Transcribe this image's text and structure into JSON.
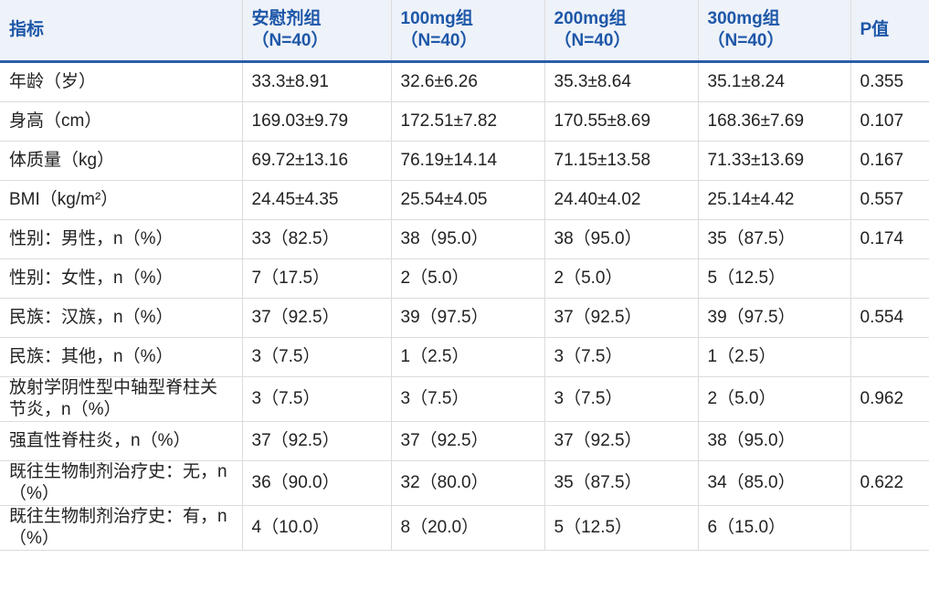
{
  "table": {
    "header": [
      "指标",
      [
        "安慰剂组",
        "（N=40）"
      ],
      [
        "100mg组",
        "（N=40）"
      ],
      [
        "200mg组",
        "（N=40）"
      ],
      [
        "300mg组",
        "（N=40）"
      ],
      "P值"
    ],
    "rows": [
      [
        "年龄（岁）",
        "33.3±8.91",
        "32.6±6.26",
        "35.3±8.64",
        "35.1±8.24",
        "0.355"
      ],
      [
        "身高（cm）",
        "169.03±9.79",
        "172.51±7.82",
        "170.55±8.69",
        "168.36±7.69",
        "0.107"
      ],
      [
        "体质量（kg）",
        "69.72±13.16",
        "76.19±14.14",
        "71.15±13.58",
        "71.33±13.69",
        "0.167"
      ],
      [
        "BMI（kg/m²）",
        "24.45±4.35",
        "25.54±4.05",
        "24.40±4.02",
        "25.14±4.42",
        "0.557"
      ],
      [
        "性别：男性，n（%）",
        "33（82.5）",
        "38（95.0）",
        "38（95.0）",
        "35（87.5）",
        "0.174"
      ],
      [
        "性别：女性，n（%）",
        "7（17.5）",
        "2（5.0）",
        "2（5.0）",
        "5（12.5）"
      ],
      [
        "民族：汉族，n（%）",
        "37（92.5）",
        "39（97.5）",
        "37（92.5）",
        "39（97.5）",
        "0.554"
      ],
      [
        "民族：其他，n（%）",
        "3（7.5）",
        "1（2.5）",
        "3（7.5）",
        "1（2.5）"
      ],
      [
        "放射学阴性型中轴型脊柱关节炎，n（%）",
        "3（7.5）",
        "3（7.5）",
        "3（7.5）",
        "2（5.0）",
        "0.962"
      ],
      [
        "强直性脊柱炎，n（%）",
        "37（92.5）",
        "37（92.5）",
        "37（92.5）",
        "38（95.0）"
      ],
      [
        "既往生物制剂治疗史：无，n（%）",
        "36（90.0）",
        "32（80.0）",
        "35（87.5）",
        "34（85.0）",
        "0.622"
      ],
      [
        "既往生物制剂治疗史：有，n（%）",
        "4（10.0）",
        "8（20.0）",
        "5（12.5）",
        "6（15.0）"
      ]
    ]
  }
}
